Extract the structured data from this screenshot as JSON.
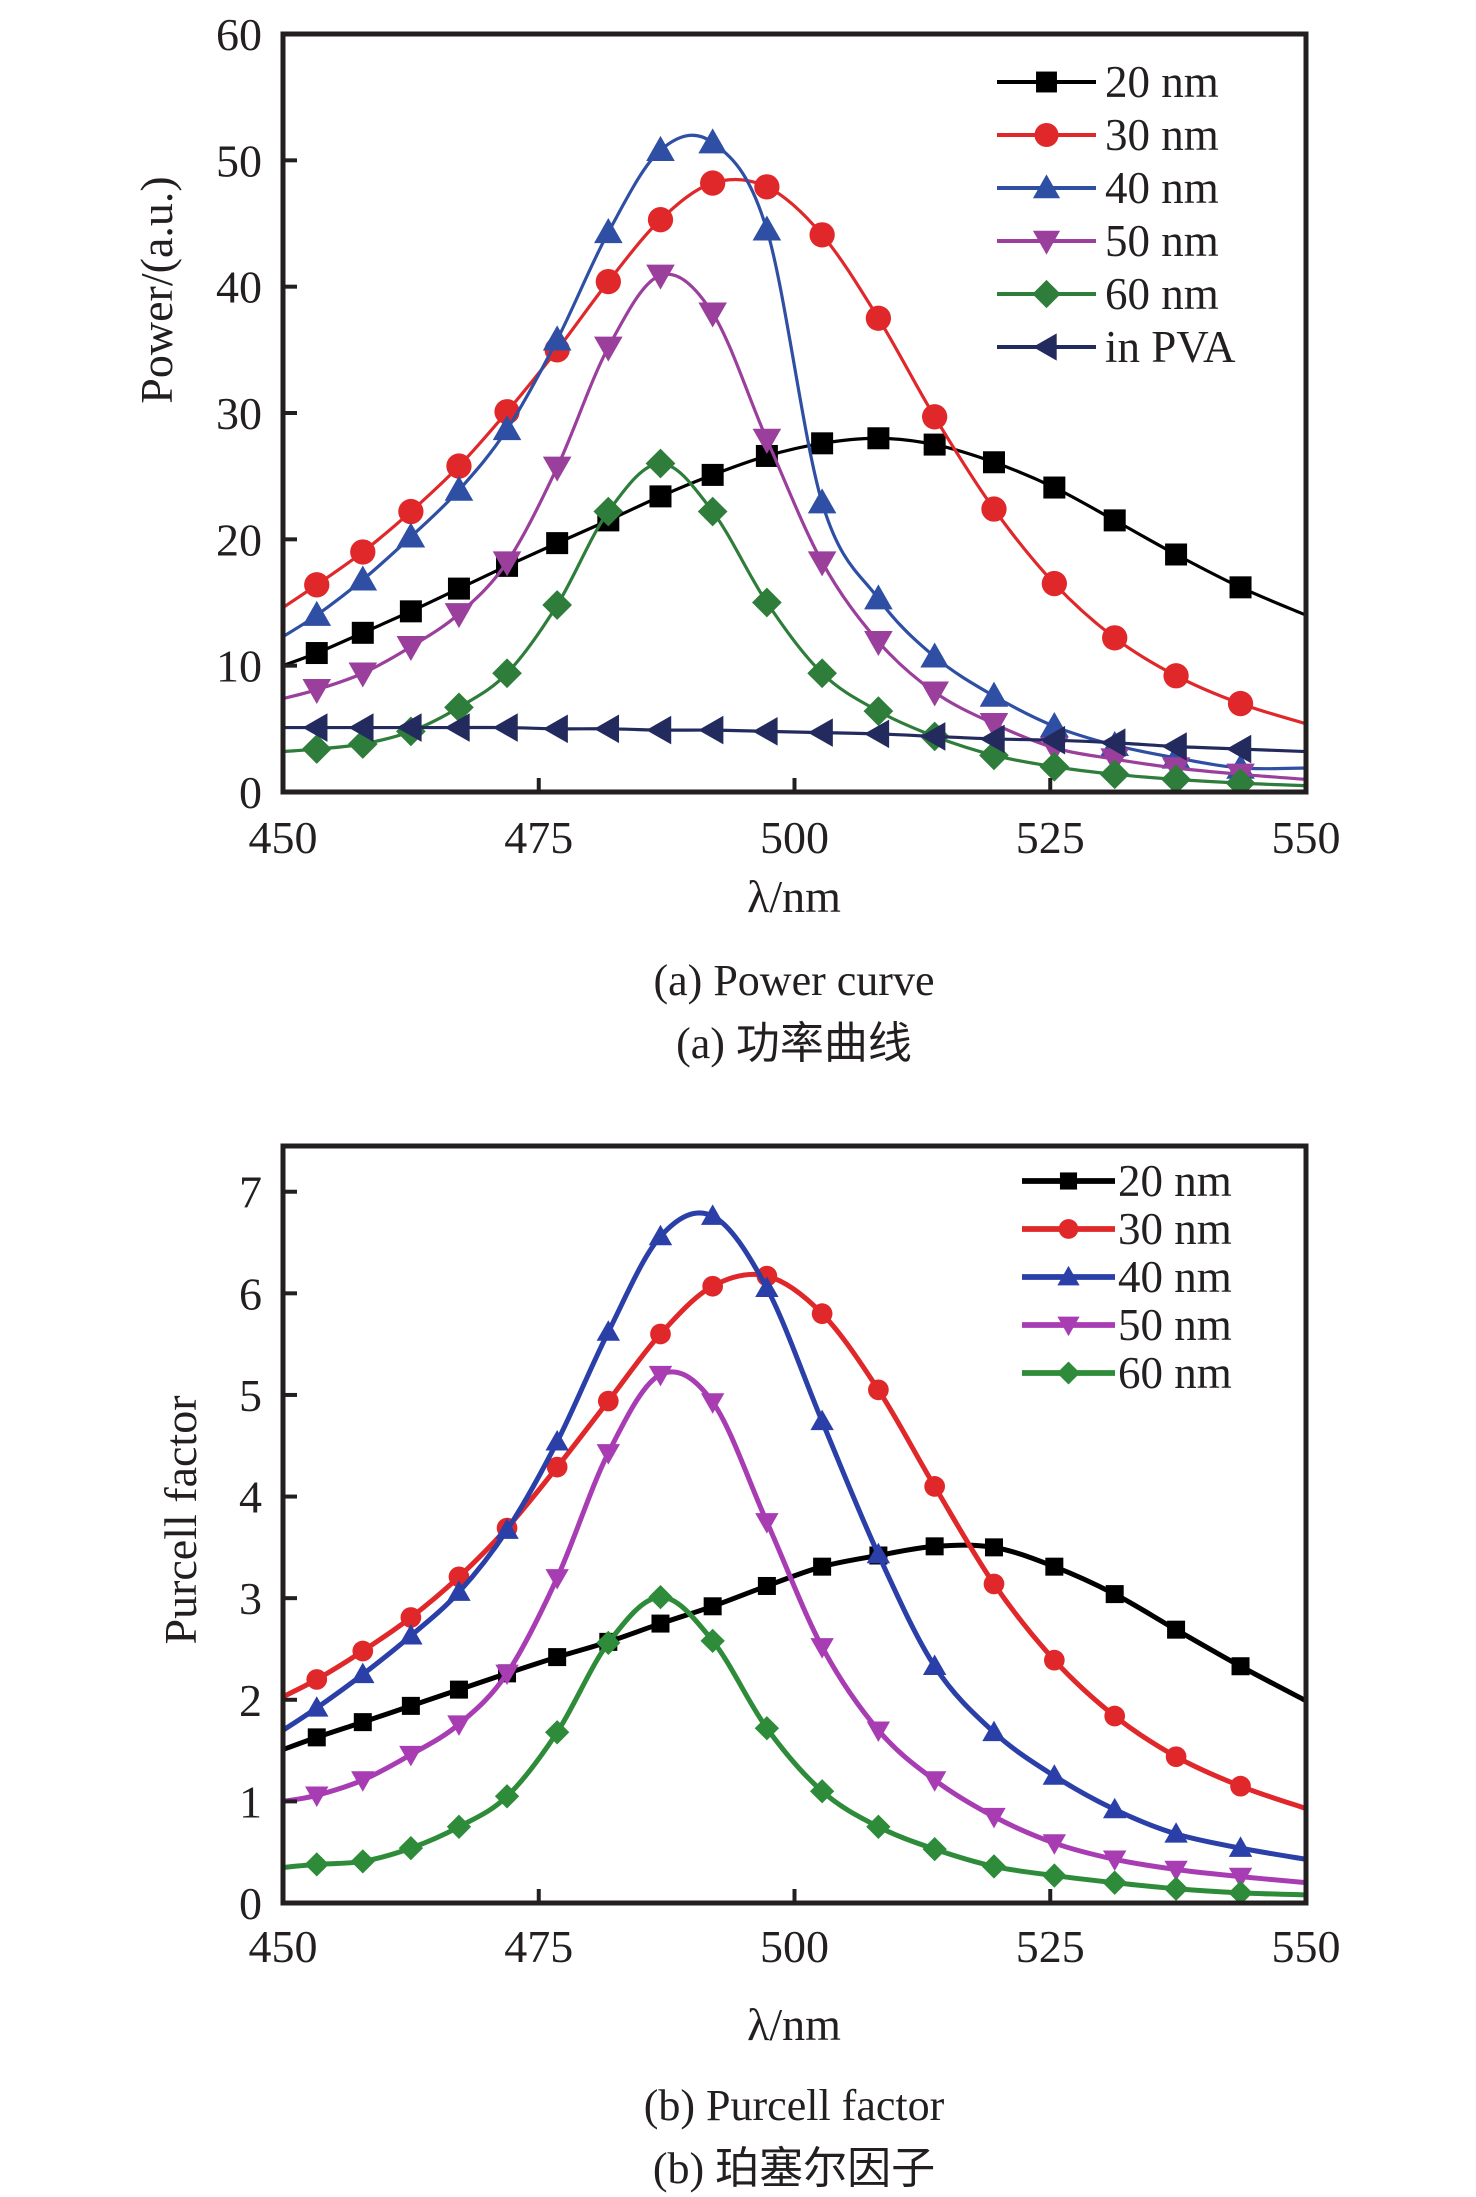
{
  "figure": {
    "captions": {
      "a_en": "(a) Power curve",
      "a_zh": "(a) 功率曲线",
      "b_en": "(b) Purcell factor",
      "b_zh": "(b) 珀塞尔因子"
    }
  },
  "chart_data": [
    {
      "type": "line",
      "title": "(a) Power curve",
      "xlabel": "λ/nm",
      "ylabel": "Power/(a.u.)",
      "xlim": [
        450,
        550
      ],
      "ylim": [
        0,
        60
      ],
      "xticks": [
        450,
        475,
        500,
        525,
        550
      ],
      "yticks": [
        0,
        10,
        20,
        30,
        40,
        50,
        60
      ],
      "xtick_labels": [
        "450",
        "475",
        "500",
        "525",
        "550"
      ],
      "ytick_labels": [
        "0",
        "10",
        "20",
        "30",
        "40",
        "50",
        "60"
      ],
      "grid": false,
      "legend_position": "top-right",
      "x": [
        450,
        453.3,
        457.8,
        462.5,
        467.2,
        471.9,
        476.8,
        481.8,
        486.9,
        492.0,
        497.3,
        502.7,
        508.2,
        513.7,
        519.5,
        525.4,
        531.3,
        537.3,
        543.6,
        550
      ],
      "series": [
        {
          "name": "20 nm",
          "color": "#000000",
          "marker": "square",
          "values": [
            10.0,
            11.0,
            12.6,
            14.3,
            16.1,
            17.9,
            19.7,
            21.5,
            23.4,
            25.1,
            26.6,
            27.6,
            28.0,
            27.5,
            26.1,
            24.1,
            21.5,
            18.8,
            16.2,
            14.0
          ]
        },
        {
          "name": "30 nm",
          "color": "#e0282a",
          "marker": "circle",
          "values": [
            14.6,
            16.4,
            19.0,
            22.2,
            25.8,
            30.1,
            35.0,
            40.4,
            45.3,
            48.2,
            47.9,
            44.1,
            37.5,
            29.7,
            22.4,
            16.5,
            12.2,
            9.2,
            7.0,
            5.4
          ]
        },
        {
          "name": "40 nm",
          "color": "#2e4fa3",
          "marker": "triangle-up",
          "values": [
            12.3,
            14.0,
            16.8,
            20.2,
            23.9,
            28.7,
            35.8,
            44.3,
            50.8,
            51.4,
            44.5,
            22.9,
            15.3,
            10.7,
            7.6,
            5.2,
            3.7,
            2.7,
            1.9,
            1.9
          ]
        },
        {
          "name": "50 nm",
          "color": "#9a3f9b",
          "marker": "triangle-down",
          "values": [
            7.4,
            8.1,
            9.4,
            11.5,
            14.1,
            18.2,
            25.7,
            35.2,
            40.9,
            37.9,
            27.9,
            18.2,
            11.9,
            7.9,
            5.4,
            3.5,
            2.6,
            1.9,
            1.4,
            1.0
          ]
        },
        {
          "name": "60 nm",
          "color": "#2e7d3a",
          "marker": "diamond",
          "values": [
            3.2,
            3.4,
            3.8,
            4.8,
            6.7,
            9.4,
            14.8,
            22.2,
            26.0,
            22.2,
            15.0,
            9.4,
            6.4,
            4.4,
            2.9,
            2.0,
            1.4,
            1.0,
            0.7,
            0.5
          ]
        },
        {
          "name": "in PVA",
          "color": "#232b5e",
          "marker": "triangle-left",
          "values": [
            5.1,
            5.1,
            5.1,
            5.1,
            5.1,
            5.1,
            5.0,
            5.0,
            4.9,
            4.9,
            4.8,
            4.7,
            4.6,
            4.4,
            4.2,
            4.1,
            3.9,
            3.6,
            3.4,
            3.2
          ]
        }
      ]
    },
    {
      "type": "line",
      "title": "(b) Purcell factor",
      "xlabel": "λ/nm",
      "ylabel": "Purcell factor",
      "xlim": [
        450,
        550
      ],
      "ylim": [
        0,
        7.45
      ],
      "xticks": [
        450,
        475,
        500,
        525,
        550
      ],
      "yticks": [
        0,
        1,
        2,
        3,
        4,
        5,
        6,
        7
      ],
      "xtick_labels": [
        "450",
        "475",
        "500",
        "525",
        "550"
      ],
      "ytick_labels": [
        "0",
        "1",
        "2",
        "3",
        "4",
        "5",
        "6",
        "7"
      ],
      "grid": false,
      "legend_position": "top-right",
      "x": [
        450,
        453.3,
        457.8,
        462.5,
        467.2,
        471.9,
        476.8,
        481.8,
        486.9,
        492.0,
        497.3,
        502.7,
        508.2,
        513.7,
        519.5,
        525.4,
        531.3,
        537.3,
        543.6,
        550
      ],
      "series": [
        {
          "name": "20 nm",
          "color": "#000000",
          "marker": "square",
          "values": [
            1.51,
            1.63,
            1.78,
            1.94,
            2.1,
            2.26,
            2.42,
            2.57,
            2.75,
            2.92,
            3.12,
            3.31,
            3.42,
            3.51,
            3.5,
            3.31,
            3.04,
            2.69,
            2.33,
            1.99
          ]
        },
        {
          "name": "30 nm",
          "color": "#e0282a",
          "marker": "circle",
          "values": [
            2.03,
            2.2,
            2.48,
            2.81,
            3.21,
            3.69,
            4.29,
            4.94,
            5.6,
            6.07,
            6.17,
            5.8,
            5.05,
            4.1,
            3.14,
            2.39,
            1.84,
            1.44,
            1.15,
            0.93
          ]
        },
        {
          "name": "40 nm",
          "color": "#2a3fa8",
          "marker": "triangle-up",
          "values": [
            1.7,
            1.92,
            2.25,
            2.63,
            3.06,
            3.67,
            4.54,
            5.62,
            6.56,
            6.76,
            6.05,
            4.74,
            3.43,
            2.33,
            1.68,
            1.25,
            0.92,
            0.68,
            0.54,
            0.43
          ]
        },
        {
          "name": "50 nm",
          "color": "#a83db3",
          "marker": "triangle-down",
          "values": [
            1.0,
            1.06,
            1.21,
            1.46,
            1.76,
            2.26,
            3.2,
            4.43,
            5.2,
            4.93,
            3.75,
            2.52,
            1.7,
            1.21,
            0.85,
            0.59,
            0.43,
            0.33,
            0.26,
            0.2
          ]
        },
        {
          "name": "60 nm",
          "color": "#2e8b3a",
          "marker": "diamond",
          "values": [
            0.35,
            0.38,
            0.41,
            0.54,
            0.75,
            1.05,
            1.68,
            2.56,
            3.01,
            2.58,
            1.72,
            1.1,
            0.75,
            0.53,
            0.36,
            0.27,
            0.2,
            0.14,
            0.1,
            0.08
          ]
        }
      ]
    }
  ]
}
